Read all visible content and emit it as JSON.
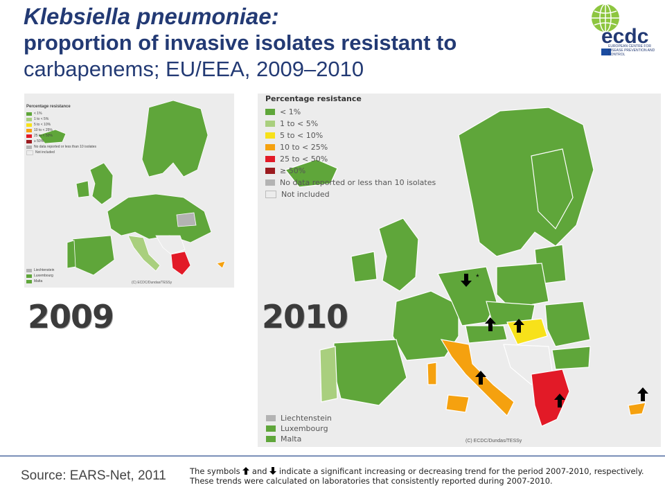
{
  "title": {
    "line1": "Klebsiella pneumoniae:",
    "line2": "proportion of invasive isolates resistant to",
    "line3": "carbapenems; EU/EEA, 2009–2010"
  },
  "logo": {
    "text": "ecdc",
    "subtext": "EUROPEAN CENTRE FOR DISEASE PREVENTION AND CONTROL"
  },
  "maps": {
    "year_2009": "2009",
    "year_2010": "2010",
    "copyright_small": "(C) ECDC/Dundas/TESSy",
    "copyright_large": "(C) ECDC/Dundas/TESSy"
  },
  "legend": {
    "title": "Percentage resistance",
    "items": [
      {
        "label": "< 1%",
        "color": "#5fa63a"
      },
      {
        "label": "1 to < 5%",
        "color": "#a9cf7e"
      },
      {
        "label": "5 to < 10%",
        "color": "#f7e11a"
      },
      {
        "label": "10 to < 25%",
        "color": "#f5a10f"
      },
      {
        "label": "25 to < 50%",
        "color": "#e21a27"
      },
      {
        "label": "≥ 50%",
        "color": "#9b1b1f"
      },
      {
        "label": "No data reported or less than 10 isolates",
        "color": "#b3b3b3"
      },
      {
        "label": "Not included",
        "color": "#ececec"
      }
    ],
    "small_states": [
      {
        "label": "Liechtenstein",
        "color": "#b3b3b3"
      },
      {
        "label": "Luxembourg",
        "color": "#5fa63a"
      },
      {
        "label": "Malta",
        "color": "#5fa63a"
      }
    ]
  },
  "trend_markers": {
    "star": "*"
  },
  "footer": {
    "source": "Source: EARS-Net, 2011",
    "note_prefix": "The symbols",
    "note_and": "and",
    "note_rest": "indicate a significant increasing or decreasing trend for the period 2007-2010, respectively.",
    "note_line2": "These trends were calculated on laboratories that consistently reported during 2007-2010."
  },
  "colors": {
    "title": "#233a74",
    "green": "#5fa63a",
    "light_green": "#a9cf7e",
    "yellow": "#f7e11a",
    "orange": "#f5a10f",
    "red": "#e21a27",
    "grey": "#b3b3b3",
    "not_included": "#ececec"
  }
}
